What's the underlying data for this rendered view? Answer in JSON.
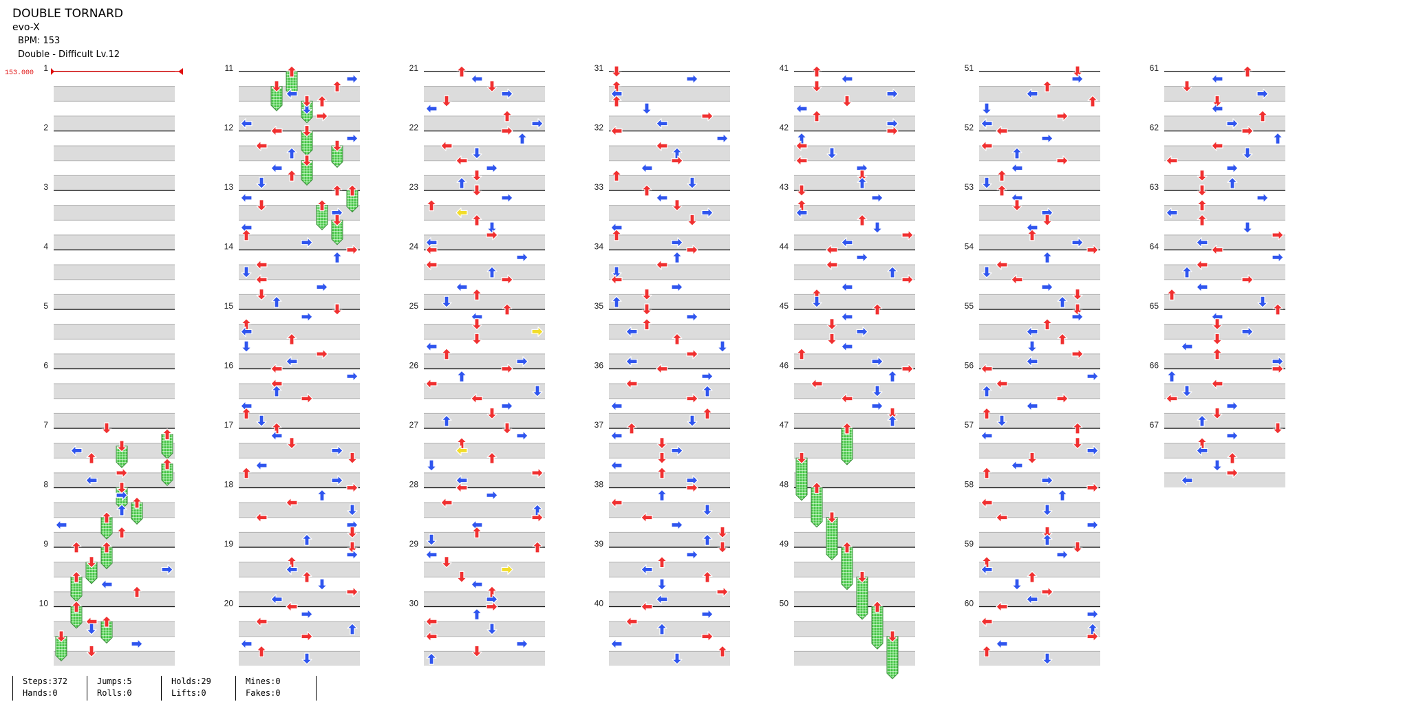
{
  "song": {
    "title": "DOUBLE TORNARD",
    "artist": "evo-X",
    "bpm_label": "BPM: 153",
    "difficulty_label": "Double - Difficult Lv.12"
  },
  "bpm_marker": {
    "label": "153.000",
    "measure": 1
  },
  "measures_per_column": 10,
  "total_measures": 67,
  "columns": [
    {
      "start_measure": 1
    },
    {
      "start_measure": 11
    },
    {
      "start_measure": 21
    },
    {
      "start_measure": 31
    },
    {
      "start_measure": 41
    },
    {
      "start_measure": 51
    },
    {
      "start_measure": 61
    }
  ],
  "colors": {
    "quarter": "#f03030",
    "eighth": "#2f55ee",
    "sixteenth": "#f2dd2a",
    "hold": "#3ecf3e",
    "bpm": "#e01010",
    "stripe": "#dcdcdc"
  },
  "arrow_sets": [
    "L,R,L,U,R,L,U,D",
    "U,L,D,R,D,L,U,R",
    "R,U,L,D,L,R,D,U",
    "D,R,U,L,U,D,R,L"
  ],
  "holds": [
    {
      "measure": 7.3,
      "lane": 4,
      "len": 0.35
    },
    {
      "measure": 7.1,
      "lane": 7,
      "len": 0.4
    },
    {
      "measure": 7.6,
      "lane": 7,
      "len": 0.35
    },
    {
      "measure": 8.0,
      "lane": 4,
      "len": 0.35
    },
    {
      "measure": 8.25,
      "lane": 5,
      "len": 0.35
    },
    {
      "measure": 8.5,
      "lane": 3,
      "len": 0.35
    },
    {
      "measure": 9.0,
      "lane": 3,
      "len": 0.35
    },
    {
      "measure": 9.25,
      "lane": 2,
      "len": 0.35
    },
    {
      "measure": 9.5,
      "lane": 1,
      "len": 0.4
    },
    {
      "measure": 10.0,
      "lane": 1,
      "len": 0.35
    },
    {
      "measure": 10.25,
      "lane": 3,
      "len": 0.35
    },
    {
      "measure": 10.5,
      "lane": 0,
      "len": 0.4
    },
    {
      "measure": 11.0,
      "lane": 3,
      "len": 0.4
    },
    {
      "measure": 11.25,
      "lane": 2,
      "len": 0.4
    },
    {
      "measure": 11.5,
      "lane": 4,
      "len": 0.35
    },
    {
      "measure": 12.0,
      "lane": 4,
      "len": 0.4
    },
    {
      "measure": 12.25,
      "lane": 6,
      "len": 0.35
    },
    {
      "measure": 12.5,
      "lane": 4,
      "len": 0.4
    },
    {
      "measure": 13.0,
      "lane": 7,
      "len": 0.35
    },
    {
      "measure": 13.25,
      "lane": 5,
      "len": 0.4
    },
    {
      "measure": 13.5,
      "lane": 6,
      "len": 0.4
    },
    {
      "measure": 47.0,
      "lane": 3,
      "len": 0.6
    },
    {
      "measure": 47.5,
      "lane": 0,
      "len": 0.7
    },
    {
      "measure": 48.0,
      "lane": 1,
      "len": 0.65
    },
    {
      "measure": 48.5,
      "lane": 2,
      "len": 0.7
    },
    {
      "measure": 49.0,
      "lane": 3,
      "len": 0.7
    },
    {
      "measure": 49.5,
      "lane": 4,
      "len": 0.7
    },
    {
      "measure": 50.0,
      "lane": 5,
      "len": 0.7
    },
    {
      "measure": 50.5,
      "lane": 6,
      "len": 0.7
    }
  ],
  "stats": [
    {
      "top": "Steps:372",
      "bottom": "Hands:0"
    },
    {
      "top": "Jumps:5",
      "bottom": "Rolls:0"
    },
    {
      "top": "Holds:29",
      "bottom": "Lifts:0"
    },
    {
      "top": "Mines:0",
      "bottom": "Fakes:0"
    }
  ]
}
